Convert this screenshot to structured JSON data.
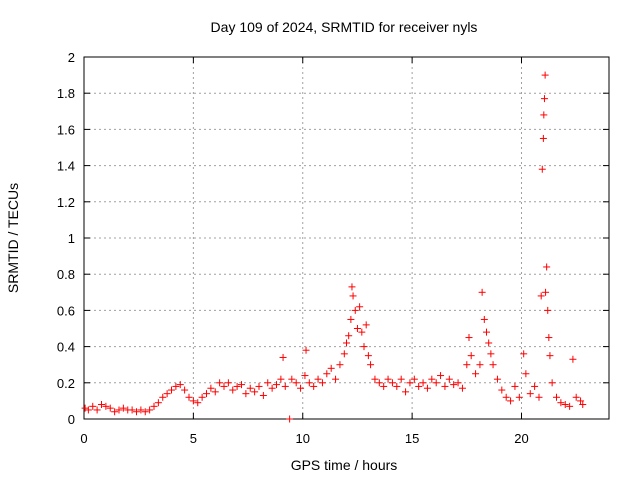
{
  "chart_data": {
    "type": "scatter",
    "title": "Day 109 of 2024, SRMTID for receiver nyls",
    "xlabel": "GPS time / hours",
    "ylabel": "SRMTID / TECUs",
    "xlim": [
      0,
      24
    ],
    "ylim": [
      0,
      2
    ],
    "xticks": [
      0,
      5,
      10,
      15,
      20
    ],
    "yticks": [
      0,
      0.2,
      0.4,
      0.6,
      0.8,
      1,
      1.2,
      1.4,
      1.6,
      1.8,
      2
    ],
    "grid": true,
    "marker": "+",
    "color": "#ff0000",
    "series": [
      {
        "name": "SRMTID",
        "points": [
          [
            0.05,
            0.06
          ],
          [
            0.2,
            0.05
          ],
          [
            0.4,
            0.07
          ],
          [
            0.6,
            0.05
          ],
          [
            0.8,
            0.08
          ],
          [
            1.0,
            0.07
          ],
          [
            1.2,
            0.06
          ],
          [
            1.4,
            0.04
          ],
          [
            1.6,
            0.05
          ],
          [
            1.8,
            0.06
          ],
          [
            2.0,
            0.05
          ],
          [
            2.2,
            0.05
          ],
          [
            2.4,
            0.04
          ],
          [
            2.6,
            0.05
          ],
          [
            2.8,
            0.04
          ],
          [
            3.0,
            0.05
          ],
          [
            3.2,
            0.07
          ],
          [
            3.4,
            0.09
          ],
          [
            3.6,
            0.12
          ],
          [
            3.8,
            0.14
          ],
          [
            4.0,
            0.16
          ],
          [
            4.2,
            0.18
          ],
          [
            4.4,
            0.19
          ],
          [
            4.6,
            0.16
          ],
          [
            4.8,
            0.12
          ],
          [
            5.0,
            0.1
          ],
          [
            5.2,
            0.09
          ],
          [
            5.4,
            0.12
          ],
          [
            5.6,
            0.14
          ],
          [
            5.8,
            0.17
          ],
          [
            6.0,
            0.15
          ],
          [
            6.2,
            0.2
          ],
          [
            6.4,
            0.18
          ],
          [
            6.6,
            0.2
          ],
          [
            6.8,
            0.16
          ],
          [
            7.0,
            0.18
          ],
          [
            7.2,
            0.19
          ],
          [
            7.4,
            0.14
          ],
          [
            7.6,
            0.17
          ],
          [
            7.8,
            0.15
          ],
          [
            8.0,
            0.18
          ],
          [
            8.2,
            0.13
          ],
          [
            8.4,
            0.2
          ],
          [
            8.6,
            0.17
          ],
          [
            8.8,
            0.19
          ],
          [
            9.0,
            0.22
          ],
          [
            9.1,
            0.34
          ],
          [
            9.2,
            0.18
          ],
          [
            9.4,
            0.0
          ],
          [
            9.5,
            0.22
          ],
          [
            9.7,
            0.2
          ],
          [
            9.9,
            0.17
          ],
          [
            10.1,
            0.24
          ],
          [
            10.15,
            0.38
          ],
          [
            10.3,
            0.2
          ],
          [
            10.5,
            0.18
          ],
          [
            10.7,
            0.22
          ],
          [
            10.9,
            0.2
          ],
          [
            11.1,
            0.25
          ],
          [
            11.3,
            0.28
          ],
          [
            11.5,
            0.22
          ],
          [
            11.7,
            0.3
          ],
          [
            11.9,
            0.36
          ],
          [
            12.0,
            0.42
          ],
          [
            12.1,
            0.46
          ],
          [
            12.2,
            0.55
          ],
          [
            12.25,
            0.73
          ],
          [
            12.3,
            0.68
          ],
          [
            12.4,
            0.6
          ],
          [
            12.5,
            0.5
          ],
          [
            12.6,
            0.62
          ],
          [
            12.7,
            0.48
          ],
          [
            12.8,
            0.4
          ],
          [
            12.9,
            0.52
          ],
          [
            13.0,
            0.35
          ],
          [
            13.1,
            0.3
          ],
          [
            13.3,
            0.22
          ],
          [
            13.5,
            0.2
          ],
          [
            13.7,
            0.18
          ],
          [
            13.9,
            0.22
          ],
          [
            14.1,
            0.2
          ],
          [
            14.3,
            0.18
          ],
          [
            14.5,
            0.22
          ],
          [
            14.7,
            0.15
          ],
          [
            14.9,
            0.2
          ],
          [
            15.1,
            0.22
          ],
          [
            15.3,
            0.18
          ],
          [
            15.5,
            0.2
          ],
          [
            15.7,
            0.17
          ],
          [
            15.9,
            0.22
          ],
          [
            16.1,
            0.2
          ],
          [
            16.3,
            0.24
          ],
          [
            16.5,
            0.18
          ],
          [
            16.7,
            0.22
          ],
          [
            16.9,
            0.19
          ],
          [
            17.1,
            0.2
          ],
          [
            17.3,
            0.17
          ],
          [
            17.5,
            0.3
          ],
          [
            17.6,
            0.45
          ],
          [
            17.7,
            0.35
          ],
          [
            17.9,
            0.25
          ],
          [
            18.1,
            0.3
          ],
          [
            18.2,
            0.7
          ],
          [
            18.3,
            0.55
          ],
          [
            18.4,
            0.48
          ],
          [
            18.5,
            0.42
          ],
          [
            18.6,
            0.36
          ],
          [
            18.7,
            0.3
          ],
          [
            18.9,
            0.22
          ],
          [
            19.1,
            0.16
          ],
          [
            19.3,
            0.12
          ],
          [
            19.5,
            0.1
          ],
          [
            19.7,
            0.18
          ],
          [
            19.9,
            0.12
          ],
          [
            20.1,
            0.36
          ],
          [
            20.2,
            0.25
          ],
          [
            20.4,
            0.14
          ],
          [
            20.6,
            0.18
          ],
          [
            20.8,
            0.12
          ],
          [
            20.9,
            0.68
          ],
          [
            20.95,
            1.38
          ],
          [
            21.0,
            1.55
          ],
          [
            21.02,
            1.68
          ],
          [
            21.05,
            1.77
          ],
          [
            21.08,
            1.9
          ],
          [
            21.1,
            0.7
          ],
          [
            21.15,
            0.84
          ],
          [
            21.2,
            0.6
          ],
          [
            21.25,
            0.45
          ],
          [
            21.3,
            0.35
          ],
          [
            21.4,
            0.2
          ],
          [
            21.6,
            0.12
          ],
          [
            21.8,
            0.09
          ],
          [
            22.0,
            0.08
          ],
          [
            22.2,
            0.07
          ],
          [
            22.35,
            0.33
          ],
          [
            22.5,
            0.12
          ],
          [
            22.7,
            0.1
          ],
          [
            22.8,
            0.08
          ]
        ]
      }
    ]
  }
}
